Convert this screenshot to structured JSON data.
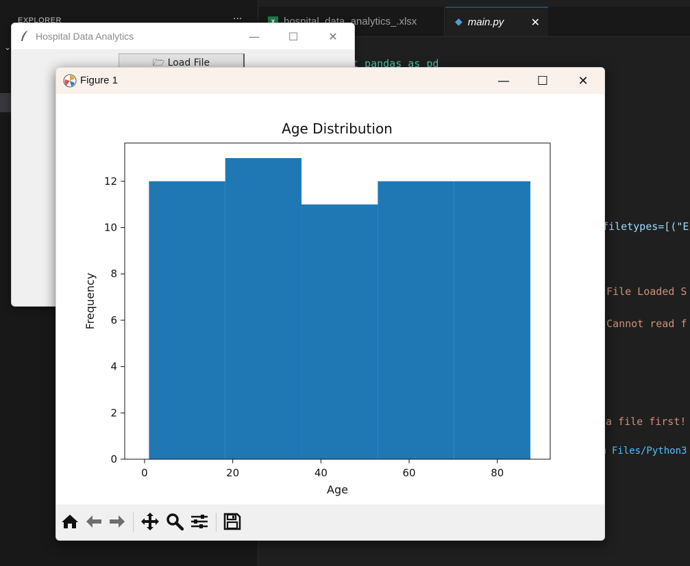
{
  "vscode": {
    "sidebar_title": "EXPLORER",
    "sidebar_more": "···",
    "tabs": [
      {
        "label": "hospital_data_analytics_.xlsx",
        "icon": "excel-icon"
      },
      {
        "label": "main.py",
        "icon": "python-icon",
        "active": true
      }
    ],
    "code_fragments": {
      "import_line": "t pandas as pd",
      "filetypes": "filetypes=[(\"E",
      "loaded": "\"File Loaded S",
      "cannot_read": "\"Cannot read f",
      "file_first": "a file first!",
      "path": "m Files/Python3"
    }
  },
  "tk_window": {
    "title": "Hospital Data Analytics",
    "load_button": "🗁 Load File"
  },
  "figure_window": {
    "title": "Figure 1",
    "toolbar": [
      "home-icon",
      "back-icon",
      "forward-icon",
      "pan-icon",
      "zoom-icon",
      "configure-subplots-icon",
      "save-icon"
    ]
  },
  "chart_data": {
    "type": "bar",
    "title": "Age Distribution",
    "xlabel": "Age",
    "ylabel": "Frequency",
    "bins": [
      [
        1,
        18.3
      ],
      [
        18.3,
        35.6
      ],
      [
        35.6,
        52.9
      ],
      [
        52.9,
        70.2
      ],
      [
        70.2,
        87.5
      ]
    ],
    "values": [
      12,
      13,
      11,
      12,
      12
    ],
    "xlim": [
      -4.5,
      92
    ],
    "ylim": [
      0,
      13.65
    ],
    "xticks": [
      0,
      20,
      40,
      60,
      80
    ],
    "yticks": [
      0,
      2,
      4,
      6,
      8,
      10,
      12
    ],
    "bar_color": "#1f77b4",
    "grid": false
  },
  "colors": {
    "vscode_bg": "#1f1f1f",
    "vscode_accent": "#0078d4",
    "bar": "#1f77b4"
  }
}
